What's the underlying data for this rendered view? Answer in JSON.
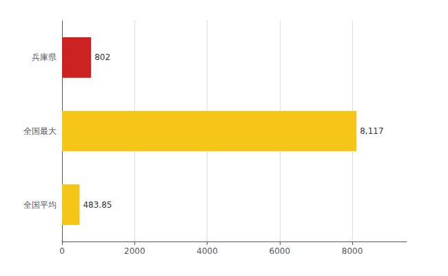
{
  "chart_data": {
    "type": "bar",
    "orientation": "horizontal",
    "categories": [
      "兵庫県",
      "全国最大",
      "全国平均"
    ],
    "values": [
      802,
      8117,
      483.85
    ],
    "value_labels": [
      "802",
      "8,117",
      "483.85"
    ],
    "data_labels": true,
    "colors": [
      "#cc2222",
      "#f5c518",
      "#f5c518"
    ],
    "xlim": [
      0,
      9500
    ],
    "xticks": [
      0,
      2000,
      4000,
      6000,
      8000
    ],
    "grid": true
  }
}
